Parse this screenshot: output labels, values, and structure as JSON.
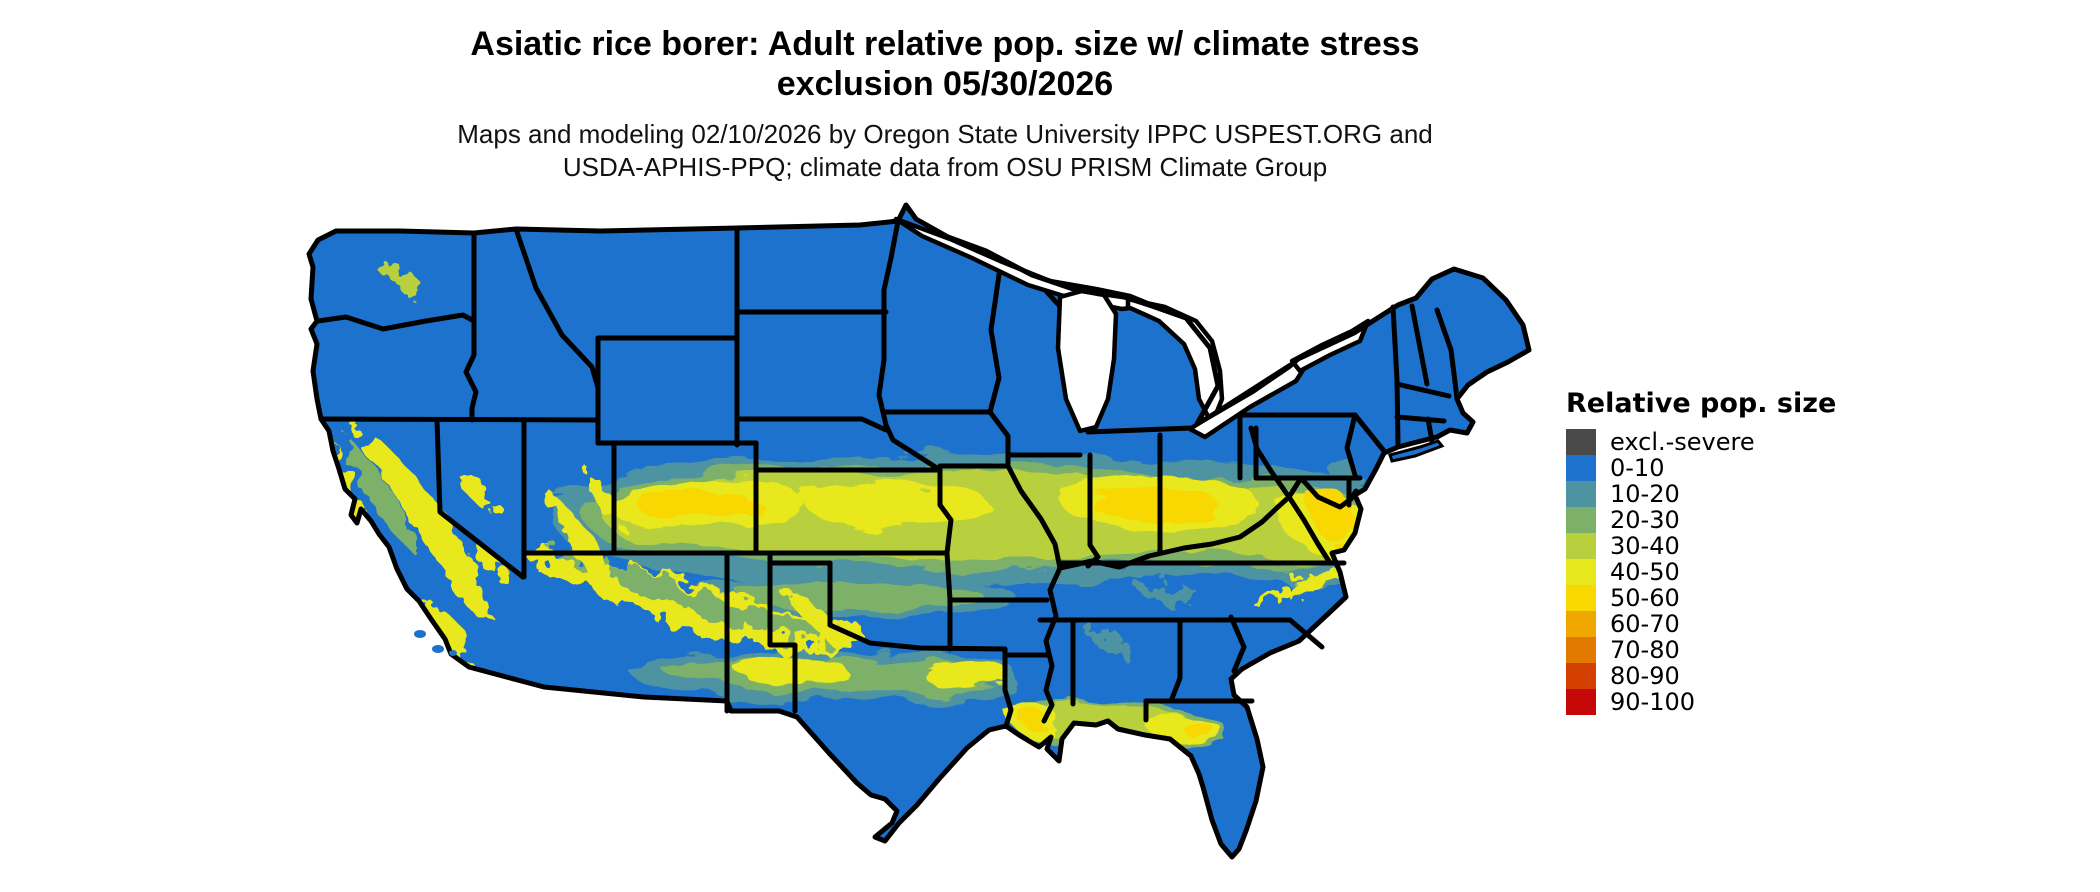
{
  "title": {
    "line1": "Asiatic rice borer: Adult relative pop. size w/ climate stress",
    "line2": "exclusion 05/30/2026"
  },
  "subtitle": {
    "line1": "Maps and modeling 02/10/2026 by Oregon State University IPPC USPEST.ORG and",
    "line2": "USDA-APHIS-PPQ; climate data from OSU PRISM Climate Group"
  },
  "legend": {
    "title": "Relative pop. size",
    "items": [
      {
        "label": "excl.-severe",
        "color": "#4A4A4A"
      },
      {
        "label": "0-10",
        "color": "#1D72CE"
      },
      {
        "label": "10-20",
        "color": "#4E93A2"
      },
      {
        "label": "20-30",
        "color": "#7DB069"
      },
      {
        "label": "30-40",
        "color": "#B8D03E"
      },
      {
        "label": "40-50",
        "color": "#E8E81E"
      },
      {
        "label": "50-60",
        "color": "#F8D800"
      },
      {
        "label": "60-70",
        "color": "#F0A800"
      },
      {
        "label": "70-80",
        "color": "#E37A00"
      },
      {
        "label": "80-90",
        "color": "#D44000"
      },
      {
        "label": "90-100",
        "color": "#C70808"
      }
    ]
  },
  "map": {
    "region": "Contiguous United States",
    "land_color": "#1D72CE",
    "state_border_color": "#000000",
    "water_color": "#FFFFFF"
  }
}
